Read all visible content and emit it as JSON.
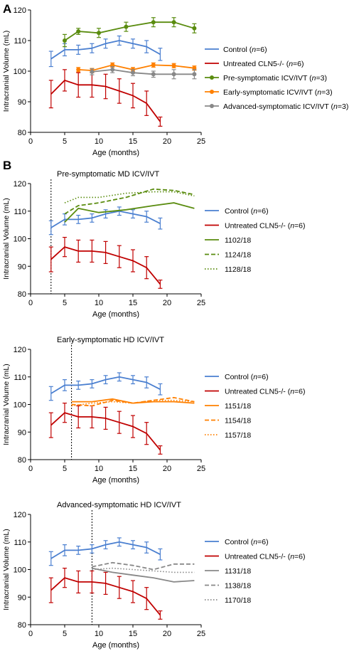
{
  "colors": {
    "control": "#4a7fd0",
    "untreated": "#c00000",
    "pre": "#5a8c0f",
    "early": "#ff8000",
    "advanced": "#888888"
  },
  "chart_data": [
    {
      "panel_letter": "A",
      "type": "line",
      "title": "",
      "xlabel": "Age (months)",
      "ylabel": "Intracranial  Volume (mL)",
      "xlim": [
        0,
        25
      ],
      "ylim": [
        80,
        120
      ],
      "xticks": [
        "0",
        "5",
        "10",
        "15",
        "20",
        "25"
      ],
      "yticks": [
        "80",
        "90",
        "100",
        "110",
        "120"
      ],
      "onset_line": null,
      "series": [
        {
          "legend_parts": [
            "Control (",
            "n",
            "=6)"
          ],
          "color": "#4a7fd0",
          "style": "solid",
          "marker": "none",
          "x": [
            3,
            5,
            7,
            9,
            11,
            13,
            15,
            17,
            19
          ],
          "y": [
            104,
            107,
            107,
            107.5,
            109,
            110,
            109,
            108,
            105.5
          ],
          "err": [
            2.5,
            2,
            1.5,
            1.5,
            1.5,
            1.5,
            1.5,
            2,
            2
          ]
        },
        {
          "legend_parts": [
            "Untreated CLN5-/- (",
            "n",
            "=6)"
          ],
          "color": "#c00000",
          "style": "solid",
          "marker": "none",
          "x": [
            3,
            5,
            7,
            9,
            11,
            13,
            15,
            17,
            19
          ],
          "y": [
            92.5,
            97,
            95.5,
            95.5,
            95,
            93.5,
            92,
            89.5,
            83.5
          ],
          "err": [
            4.5,
            3.5,
            4,
            4,
            4,
            4,
            4,
            4,
            1.5
          ]
        },
        {
          "legend_parts": [
            "Pre-symptomatic ICV/IVT (",
            "n",
            "=3)"
          ],
          "color": "#5a8c0f",
          "style": "solid",
          "marker": "circle",
          "x": [
            5,
            7,
            10,
            14,
            18,
            21,
            24
          ],
          "y": [
            110,
            113,
            112.5,
            114.5,
            116,
            116,
            114
          ],
          "err": [
            2,
            1,
            1.5,
            1.5,
            1.5,
            1.5,
            1.5
          ]
        },
        {
          "legend_parts": [
            "Early-symptomatic ICV/IVT (",
            "n",
            "=3)"
          ],
          "color": "#ff8000",
          "style": "solid",
          "marker": "circle",
          "x": [
            7,
            9,
            12,
            15,
            18,
            21,
            24
          ],
          "y": [
            100.5,
            100.2,
            102,
            100.5,
            102,
            101.8,
            101
          ],
          "err": [
            0.7,
            0.7,
            0.7,
            0.7,
            0.7,
            0.7,
            0.7
          ]
        },
        {
          "legend_parts": [
            "Advanced-symptomatic ICV/IVT (",
            "n",
            "=3)"
          ],
          "color": "#888888",
          "style": "solid",
          "marker": "circle",
          "x": [
            9,
            12,
            15,
            18,
            21,
            24
          ],
          "y": [
            99.8,
            100.5,
            99.5,
            99,
            99,
            99
          ],
          "err": [
            1,
            1,
            1,
            1,
            1.5,
            1.5
          ]
        }
      ]
    },
    {
      "panel_letter": "B",
      "type": "line",
      "title": "Pre-symptomatic MD ICV/IVT",
      "xlabel": "Age (months)",
      "ylabel": "Intracranial  Volume (mL)",
      "xlim": [
        0,
        25
      ],
      "ylim": [
        80,
        120
      ],
      "xticks": [
        "0",
        "5",
        "10",
        "15",
        "20",
        "25"
      ],
      "yticks": [
        "80",
        "90",
        "100",
        "110",
        "120"
      ],
      "onset_line": 3,
      "series": [
        {
          "legend_parts": [
            "Control (",
            "n",
            "=6)"
          ],
          "color": "#4a7fd0",
          "style": "solid",
          "marker": "none",
          "x": [
            3,
            5,
            7,
            9,
            11,
            13,
            15,
            17,
            19
          ],
          "y": [
            104,
            107,
            107,
            107.5,
            109,
            110,
            109,
            108,
            105.5
          ],
          "err": [
            2.5,
            2,
            1.5,
            1.5,
            1.5,
            1.5,
            1.5,
            2,
            2
          ]
        },
        {
          "legend_parts": [
            "Untreated CLN5-/- (",
            "n",
            "=6)"
          ],
          "color": "#c00000",
          "style": "solid",
          "marker": "none",
          "x": [
            3,
            5,
            7,
            9,
            11,
            13,
            15,
            17,
            19
          ],
          "y": [
            92.5,
            97,
            95.5,
            95.5,
            95,
            93.5,
            92,
            89.5,
            83.5
          ],
          "err": [
            4.5,
            3.5,
            4,
            4,
            4,
            4,
            4,
            4,
            1.5
          ]
        },
        {
          "legend_parts": [
            "1102/18"
          ],
          "color": "#5a8c0f",
          "style": "solid",
          "marker": "none",
          "x": [
            5,
            7,
            10,
            14,
            18,
            21,
            24
          ],
          "y": [
            106,
            111,
            109.5,
            110.5,
            112,
            113,
            111
          ]
        },
        {
          "legend_parts": [
            "1124/18"
          ],
          "color": "#5a8c0f",
          "style": "dashed",
          "marker": "none",
          "x": [
            5,
            7,
            10,
            14,
            18,
            21,
            24
          ],
          "y": [
            109,
            112,
            113,
            115,
            118,
            117.5,
            116
          ]
        },
        {
          "legend_parts": [
            "1128/18"
          ],
          "color": "#5a8c0f",
          "style": "dotted",
          "marker": "none",
          "x": [
            5,
            7,
            10,
            14,
            18,
            21,
            24
          ],
          "y": [
            113,
            115,
            115,
            116.5,
            117,
            117,
            115.5
          ]
        }
      ]
    },
    {
      "panel_letter": "",
      "type": "line",
      "title": "Early-symptomatic HD ICV/IVT",
      "xlabel": "Age (months)",
      "ylabel": "Intracranial  Volume (mL)",
      "xlim": [
        0,
        25
      ],
      "ylim": [
        80,
        120
      ],
      "xticks": [
        "0",
        "5",
        "10",
        "15",
        "20",
        "25"
      ],
      "yticks": [
        "80",
        "90",
        "100",
        "110",
        "120"
      ],
      "onset_line": 6,
      "series": [
        {
          "legend_parts": [
            "Control (",
            "n",
            "=6)"
          ],
          "color": "#4a7fd0",
          "style": "solid",
          "marker": "none",
          "x": [
            3,
            5,
            7,
            9,
            11,
            13,
            15,
            17,
            19
          ],
          "y": [
            104,
            107,
            107,
            107.5,
            109,
            110,
            109,
            108,
            105.5
          ],
          "err": [
            2.5,
            2,
            1.5,
            1.5,
            1.5,
            1.5,
            1.5,
            2,
            2
          ]
        },
        {
          "legend_parts": [
            "Untreated CLN5-/- (",
            "n",
            "=6)"
          ],
          "color": "#c00000",
          "style": "solid",
          "marker": "none",
          "x": [
            3,
            5,
            7,
            9,
            11,
            13,
            15,
            17,
            19
          ],
          "y": [
            92.5,
            97,
            95.5,
            95.5,
            95,
            93.5,
            92,
            89.5,
            83.5
          ],
          "err": [
            4.5,
            3.5,
            4,
            4,
            4,
            4,
            4,
            4,
            1.5
          ]
        },
        {
          "legend_parts": [
            "1151/18"
          ],
          "color": "#ff8000",
          "style": "solid",
          "marker": "none",
          "x": [
            6,
            9,
            12,
            15,
            18,
            21,
            24
          ],
          "y": [
            101,
            101,
            102,
            100.5,
            101,
            101,
            100.5
          ]
        },
        {
          "legend_parts": [
            "1154/18"
          ],
          "color": "#ff8000",
          "style": "dashed",
          "marker": "none",
          "x": [
            6,
            9,
            12,
            15,
            18,
            21,
            24
          ],
          "y": [
            100,
            99.5,
            101.5,
            100.5,
            101.5,
            102.5,
            101
          ]
        },
        {
          "legend_parts": [
            "1157/18"
          ],
          "color": "#ff8000",
          "style": "dotted",
          "marker": "none",
          "x": [
            6,
            9,
            12,
            15,
            18,
            21,
            24
          ],
          "y": [
            99.5,
            100.5,
            101,
            100.5,
            101.5,
            101.5,
            101
          ]
        }
      ]
    },
    {
      "panel_letter": "",
      "type": "line",
      "title": "Advanced-symptomatic HD ICV/IVT",
      "xlabel": "Age (months)",
      "ylabel": "Intracranial  Volume (mL)",
      "xlim": [
        0,
        25
      ],
      "ylim": [
        80,
        120
      ],
      "xticks": [
        "0",
        "5",
        "10",
        "15",
        "20",
        "25"
      ],
      "yticks": [
        "80",
        "90",
        "100",
        "110",
        "120"
      ],
      "onset_line": 9,
      "series": [
        {
          "legend_parts": [
            "Control (",
            "n",
            "=6)"
          ],
          "color": "#4a7fd0",
          "style": "solid",
          "marker": "none",
          "x": [
            3,
            5,
            7,
            9,
            11,
            13,
            15,
            17,
            19
          ],
          "y": [
            104,
            107,
            107,
            107.5,
            109,
            110,
            109,
            108,
            105.5
          ],
          "err": [
            2.5,
            2,
            1.5,
            1.5,
            1.5,
            1.5,
            1.5,
            2,
            2
          ]
        },
        {
          "legend_parts": [
            "Untreated CLN5-/- (",
            "n",
            "=6)"
          ],
          "color": "#c00000",
          "style": "solid",
          "marker": "none",
          "x": [
            3,
            5,
            7,
            9,
            11,
            13,
            15,
            17,
            19
          ],
          "y": [
            92.5,
            97,
            95.5,
            95.5,
            95,
            93.5,
            92,
            89.5,
            83.5
          ],
          "err": [
            4.5,
            3.5,
            4,
            4,
            4,
            4,
            4,
            4,
            1.5
          ]
        },
        {
          "legend_parts": [
            "1131/18"
          ],
          "color": "#888888",
          "style": "solid",
          "marker": "none",
          "x": [
            9,
            12,
            15,
            18,
            21,
            24
          ],
          "y": [
            100.5,
            99,
            98,
            97,
            95.5,
            96
          ]
        },
        {
          "legend_parts": [
            "1138/18"
          ],
          "color": "#888888",
          "style": "dashed",
          "marker": "none",
          "x": [
            9,
            12,
            15,
            18,
            21,
            24
          ],
          "y": [
            101,
            102.5,
            101.5,
            100,
            102,
            102
          ]
        },
        {
          "legend_parts": [
            "1170/18"
          ],
          "color": "#888888",
          "style": "dotted",
          "marker": "none",
          "x": [
            9,
            12,
            15,
            18,
            21,
            24
          ],
          "y": [
            100,
            100.5,
            100,
            99.5,
            99,
            99
          ]
        }
      ]
    }
  ]
}
